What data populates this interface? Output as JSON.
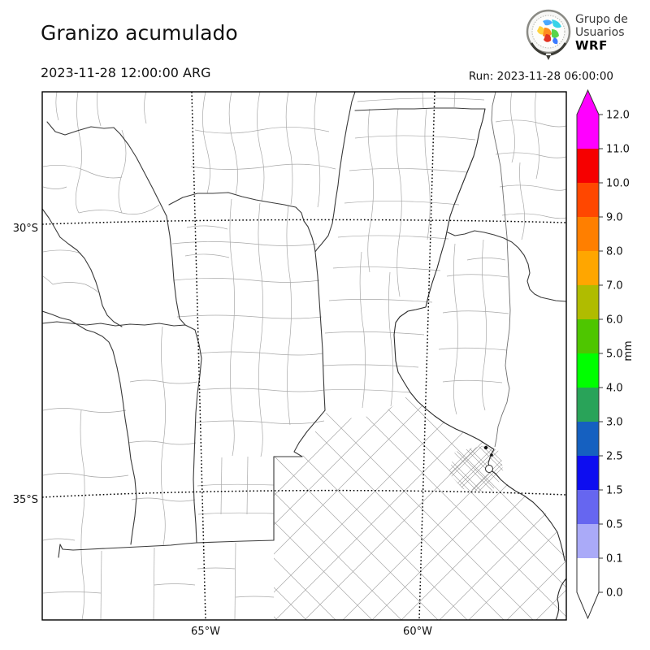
{
  "header": {
    "title": "Granizo acumulado",
    "datetime_label": "2023-11-28 12:00:00 ARG",
    "run_label": "Run: 2023-11-28 06:00:00",
    "logo": {
      "line1": "Grupo de",
      "line2": "Usuarios",
      "line3": "WRF"
    }
  },
  "map": {
    "lat_ticks": [
      {
        "label": "30°S"
      },
      {
        "label": "35°S"
      }
    ],
    "lon_ticks": [
      {
        "label": "65°W"
      },
      {
        "label": "60°W"
      }
    ]
  },
  "colorbar": {
    "unit": "mm",
    "tick_labels": [
      "0.0",
      "0.1",
      "0.5",
      "1.5",
      "2.5",
      "3.0",
      "4.0",
      "5.0",
      "6.0",
      "7.0",
      "8.0",
      "9.0",
      "10.0",
      "11.0",
      "12.0"
    ],
    "segment_colors": [
      "#ffffff",
      "#aaaaf8",
      "#6666f0",
      "#0d0df0",
      "#1560c0",
      "#29a359",
      "#00ff00",
      "#4ec600",
      "#b0bc00",
      "#ffa600",
      "#ff7f00",
      "#ff4700",
      "#f60000",
      "#ff00ff"
    ],
    "extend_over_color": "#ff00ff",
    "extend_under_color": "#ffffff"
  }
}
